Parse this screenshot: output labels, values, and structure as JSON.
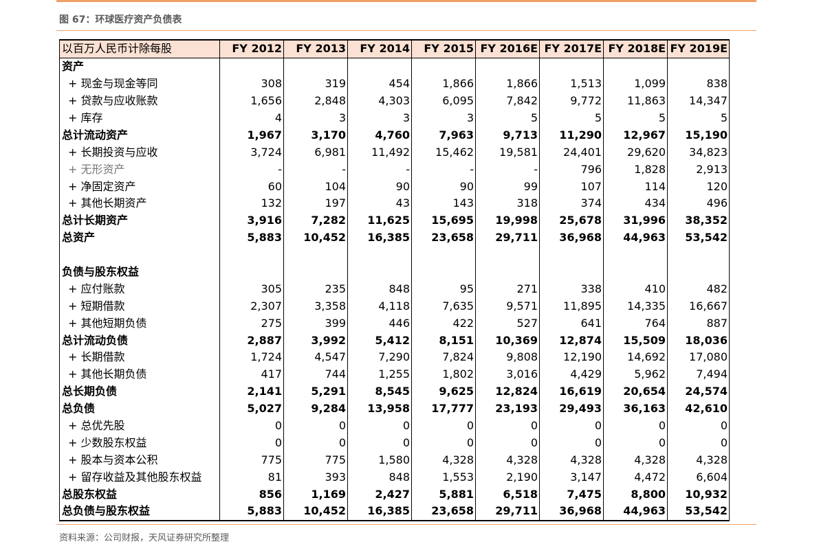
{
  "header": {
    "figure_title": "图 67：环球医疗资产负债表"
  },
  "table": {
    "unit_label": "以百万人民币计除每股",
    "columns": [
      "FY 2012",
      "FY 2013",
      "FY 2014",
      "FY 2015",
      "FY 2016E",
      "FY 2017E",
      "FY 2018E",
      "FY 2019E"
    ],
    "rows": [
      {
        "label": "资产",
        "kind": "section",
        "values": [
          "",
          "",
          "",
          "",
          "",
          "",
          "",
          ""
        ]
      },
      {
        "label": "+ 现金与现金等同",
        "kind": "sub",
        "values": [
          "308",
          "319",
          "454",
          "1,866",
          "1,866",
          "1,513",
          "1,099",
          "838"
        ]
      },
      {
        "label": "+ 贷款与应收账款",
        "kind": "sub",
        "values": [
          "1,656",
          "2,848",
          "4,303",
          "6,095",
          "7,842",
          "9,772",
          "11,863",
          "14,347"
        ]
      },
      {
        "label": "+ 库存",
        "kind": "sub",
        "values": [
          "4",
          "3",
          "3",
          "3",
          "5",
          "5",
          "5",
          "5"
        ]
      },
      {
        "label": "总计流动资产",
        "kind": "bold",
        "values": [
          "1,967",
          "3,170",
          "4,760",
          "7,963",
          "9,713",
          "11,290",
          "12,967",
          "15,190"
        ]
      },
      {
        "label": "+ 长期投资与应收",
        "kind": "sub",
        "values": [
          "3,724",
          "6,981",
          "11,492",
          "15,462",
          "19,581",
          "24,401",
          "29,620",
          "34,823"
        ]
      },
      {
        "label": "+ 无形资产",
        "kind": "subgray",
        "values": [
          "-",
          "-",
          "-",
          "-",
          "-",
          "796",
          "1,828",
          "2,913"
        ]
      },
      {
        "label": "+ 净固定资产",
        "kind": "sub",
        "values": [
          "60",
          "104",
          "90",
          "90",
          "99",
          "107",
          "114",
          "120"
        ]
      },
      {
        "label": "+ 其他长期资产",
        "kind": "sub",
        "values": [
          "132",
          "197",
          "43",
          "143",
          "318",
          "374",
          "434",
          "496"
        ]
      },
      {
        "label": "总计长期资产",
        "kind": "bold",
        "values": [
          "3,916",
          "7,282",
          "11,625",
          "15,695",
          "19,998",
          "25,678",
          "31,996",
          "38,352"
        ]
      },
      {
        "label": "总资产",
        "kind": "bold",
        "values": [
          "5,883",
          "10,452",
          "16,385",
          "23,658",
          "29,711",
          "36,968",
          "44,963",
          "53,542"
        ]
      },
      {
        "label": "",
        "kind": "blank",
        "values": [
          "",
          "",
          "",
          "",
          "",
          "",
          "",
          ""
        ]
      },
      {
        "label": "负债与股东权益",
        "kind": "section",
        "values": [
          "",
          "",
          "",
          "",
          "",
          "",
          "",
          ""
        ]
      },
      {
        "label": "+ 应付账款",
        "kind": "sub",
        "values": [
          "305",
          "235",
          "848",
          "95",
          "271",
          "338",
          "410",
          "482"
        ]
      },
      {
        "label": "+ 短期借款",
        "kind": "sub",
        "values": [
          "2,307",
          "3,358",
          "4,118",
          "7,635",
          "9,571",
          "11,895",
          "14,335",
          "16,667"
        ]
      },
      {
        "label": "+ 其他短期负债",
        "kind": "sub",
        "values": [
          "275",
          "399",
          "446",
          "422",
          "527",
          "641",
          "764",
          "887"
        ]
      },
      {
        "label": "总计流动负债",
        "kind": "bold",
        "values": [
          "2,887",
          "3,992",
          "5,412",
          "8,151",
          "10,369",
          "12,874",
          "15,509",
          "18,036"
        ]
      },
      {
        "label": "+ 长期借款",
        "kind": "sub",
        "values": [
          "1,724",
          "4,547",
          "7,290",
          "7,824",
          "9,808",
          "12,190",
          "14,692",
          "17,080"
        ]
      },
      {
        "label": "+ 其他长期负债",
        "kind": "sub",
        "values": [
          "417",
          "744",
          "1,255",
          "1,802",
          "3,016",
          "4,429",
          "5,962",
          "7,494"
        ]
      },
      {
        "label": "总长期负债",
        "kind": "bold",
        "values": [
          "2,141",
          "5,291",
          "8,545",
          "9,625",
          "12,824",
          "16,619",
          "20,654",
          "24,574"
        ]
      },
      {
        "label": "总负债",
        "kind": "bold",
        "values": [
          "5,027",
          "9,284",
          "13,958",
          "17,777",
          "23,193",
          "29,493",
          "36,163",
          "42,610"
        ]
      },
      {
        "label": "+ 总优先股",
        "kind": "sub",
        "values": [
          "0",
          "0",
          "0",
          "0",
          "0",
          "0",
          "0",
          "0"
        ]
      },
      {
        "label": "+ 少数股东权益",
        "kind": "sub",
        "values": [
          "0",
          "0",
          "0",
          "0",
          "0",
          "0",
          "0",
          "0"
        ]
      },
      {
        "label": "+ 股本与资本公积",
        "kind": "sub",
        "values": [
          "775",
          "775",
          "1,580",
          "4,328",
          "4,328",
          "4,328",
          "4,328",
          "4,328"
        ]
      },
      {
        "label": "+ 留存收益及其他股东权益",
        "kind": "sub",
        "values": [
          "81",
          "393",
          "848",
          "1,553",
          "2,190",
          "3,147",
          "4,472",
          "6,604"
        ]
      },
      {
        "label": "总股东权益",
        "kind": "bold",
        "values": [
          "856",
          "1,169",
          "2,427",
          "5,881",
          "6,518",
          "7,475",
          "8,800",
          "10,932"
        ]
      },
      {
        "label": "总负债与股东权益",
        "kind": "bold",
        "values": [
          "5,883",
          "10,452",
          "16,385",
          "23,658",
          "29,711",
          "36,968",
          "44,963",
          "53,542"
        ]
      }
    ]
  },
  "footer": {
    "source": "资料来源：公司财报，天风证券研究所整理"
  }
}
